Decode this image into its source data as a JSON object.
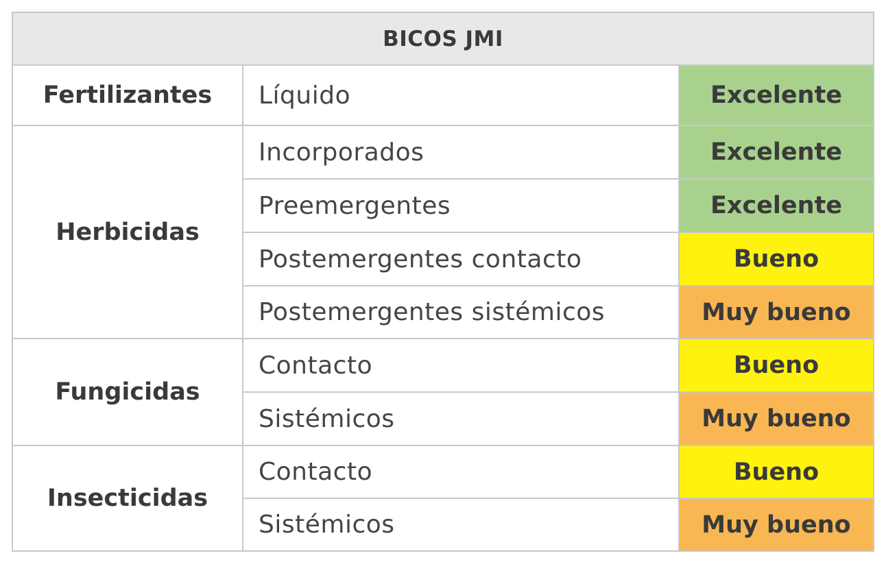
{
  "table": {
    "title": "BICOS JMI",
    "categories": [
      {
        "label": "Fertilizantes"
      },
      {
        "label": "Herbicidas"
      },
      {
        "label": "Fungicidas"
      },
      {
        "label": "Insecticidas"
      }
    ],
    "rows": [
      {
        "sub": "Líquido",
        "rating": "Excelente"
      },
      {
        "sub": "Incorporados",
        "rating": "Excelente"
      },
      {
        "sub": "Preemergentes",
        "rating": "Excelente"
      },
      {
        "sub": "Postemergentes contacto",
        "rating": "Bueno"
      },
      {
        "sub": "Postemergentes sistémicos",
        "rating": "Muy bueno"
      },
      {
        "sub": "Contacto",
        "rating": "Bueno"
      },
      {
        "sub": "Sistémicos",
        "rating": "Muy bueno"
      },
      {
        "sub": "Contacto",
        "rating": "Bueno"
      },
      {
        "sub": "Sistémicos",
        "rating": "Muy bueno"
      }
    ],
    "rating_colors": {
      "Excelente": "#a9d18e",
      "Bueno": "#fff20f",
      "Muy bueno": "#f9b754"
    }
  }
}
